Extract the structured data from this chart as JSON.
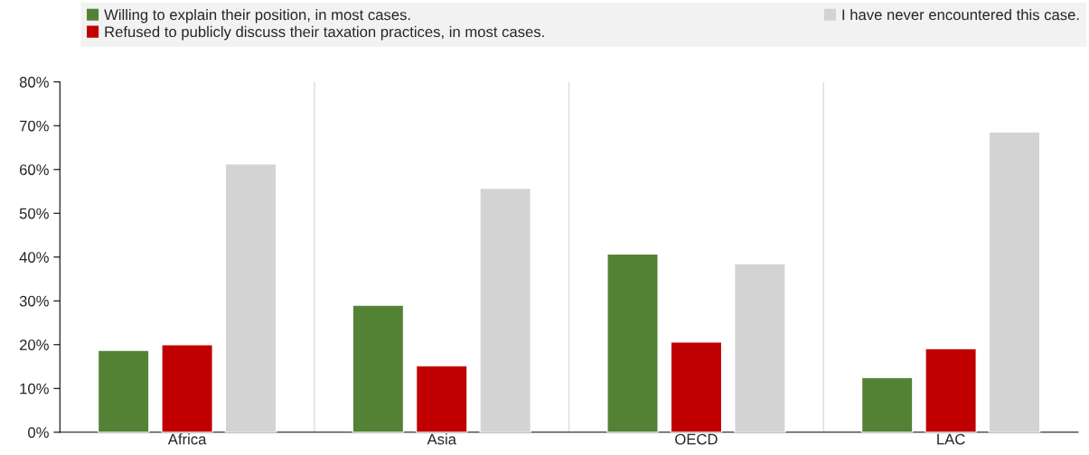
{
  "chart_data": {
    "type": "bar",
    "categories": [
      "Africa",
      "Asia",
      "OECD",
      "LAC"
    ],
    "series": [
      {
        "name": "Willing to explain their position, in most cases.",
        "color": "#548235",
        "values": [
          18.7,
          29,
          40.7,
          12.5
        ]
      },
      {
        "name": "Refused to publicly discuss their taxation practices, in most cases.",
        "color": "#c00000",
        "values": [
          20,
          15.2,
          20.6,
          19.1
        ]
      },
      {
        "name": "I have never encountered this case.",
        "color": "#d3d3d3",
        "values": [
          61.3,
          55.7,
          38.5,
          68.6
        ]
      }
    ],
    "ylim": [
      0,
      80
    ],
    "yticks": [
      {
        "value": 0,
        "label": "0%"
      },
      {
        "value": 10,
        "label": "10%"
      },
      {
        "value": 20,
        "label": "20%"
      },
      {
        "value": 30,
        "label": "30%"
      },
      {
        "value": 40,
        "label": "40%"
      },
      {
        "value": 50,
        "label": "50%"
      },
      {
        "value": 60,
        "label": "60%"
      },
      {
        "value": 70,
        "label": "70%"
      },
      {
        "value": 80,
        "label": "80%"
      }
    ],
    "grid": "x",
    "legend": "top"
  }
}
